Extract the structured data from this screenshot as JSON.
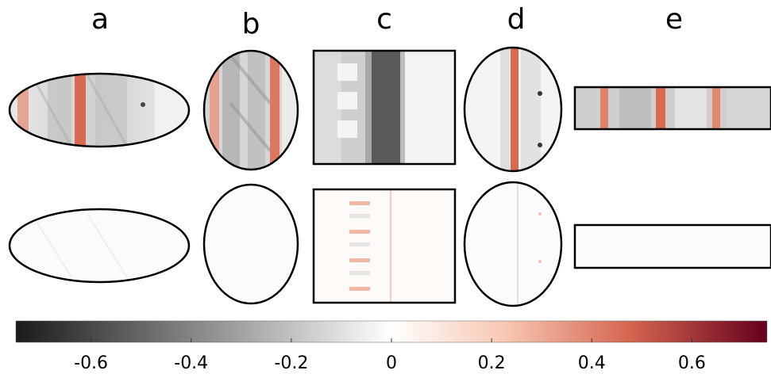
{
  "panels": [
    {
      "label": "a",
      "shape": "ellipse"
    },
    {
      "label": "b",
      "shape": "ellipse"
    },
    {
      "label": "c",
      "shape": "square"
    },
    {
      "label": "d",
      "shape": "ellipse"
    },
    {
      "label": "e",
      "shape": "rectangle"
    }
  ],
  "colorbar": {
    "min": -0.75,
    "max": 0.75,
    "ticks": [
      "-0.6",
      "-0.4",
      "-0.2",
      "0",
      "0.2",
      "0.4",
      "0.6"
    ],
    "colors": {
      "negative_end": "#1a1a1a",
      "mid_gray": "#9a9a9a",
      "zero": "#ffffff",
      "light_positive": "#f6c4ad",
      "mid_positive": "#d9705a",
      "positive_end": "#65001e"
    }
  },
  "colors": {
    "outline": "#000000",
    "stripe_red": "#e0826a",
    "field_gray": "#c9c9c9",
    "dark_band": "#5a5a5a"
  }
}
